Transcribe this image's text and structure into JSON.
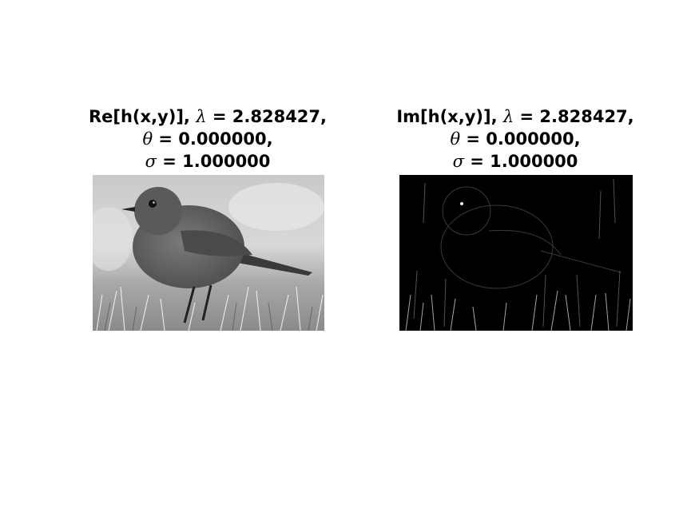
{
  "panels": [
    {
      "id": "real",
      "title_line1": "Re[h(x,y)], ",
      "title_line1_sym": "λ",
      "title_line1_rest": " = 2.828427,",
      "title_line2_sym": "θ",
      "title_line2_rest": " = 0.000000,",
      "title_line3_sym": "σ",
      "title_line3_rest": " = 1.000000",
      "image_subject": "grayscale-robin-photo"
    },
    {
      "id": "imag",
      "title_line1": "Im[h(x,y)], ",
      "title_line1_sym": "λ",
      "title_line1_rest": " = 2.828427,",
      "title_line2_sym": "θ",
      "title_line2_rest": " = 0.000000,",
      "title_line3_sym": "σ",
      "title_line3_rest": " = 1.000000",
      "image_subject": "edge-response-robin"
    }
  ]
}
